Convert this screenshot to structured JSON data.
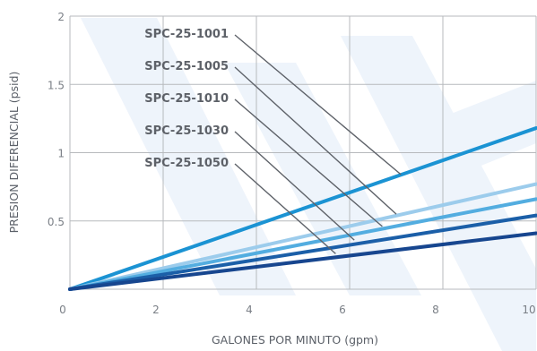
{
  "chart_data": {
    "type": "line",
    "xlabel": "GALONES POR MINUTO (gpm)",
    "ylabel": "PRESION DIFERENCIAL (psid)",
    "xlim": [
      0,
      10
    ],
    "ylim": [
      0,
      2
    ],
    "x_ticks": [
      "0",
      "2",
      "4",
      "6",
      "8",
      "10"
    ],
    "y_ticks": [
      "0.5",
      "1",
      "1.5",
      "2"
    ],
    "grid": true,
    "series": [
      {
        "name": "SPC-25-1001",
        "x": [
          0,
          10
        ],
        "y": [
          0,
          1.18
        ],
        "color": "#1b93d3"
      },
      {
        "name": "SPC-25-1005",
        "x": [
          0,
          10
        ],
        "y": [
          0,
          0.77
        ],
        "color": "#9cccec"
      },
      {
        "name": "SPC-25-1010",
        "x": [
          0,
          10
        ],
        "y": [
          0,
          0.66
        ],
        "color": "#53ade0"
      },
      {
        "name": "SPC-25-1030",
        "x": [
          0,
          10
        ],
        "y": [
          0,
          0.54
        ],
        "color": "#1b5fa8"
      },
      {
        "name": "SPC-25-1050",
        "x": [
          0,
          10
        ],
        "y": [
          0,
          0.41
        ],
        "color": "#17468f"
      }
    ],
    "label_leader_targets": [
      {
        "x": 7.1,
        "y": 0.84
      },
      {
        "x": 7.0,
        "y": 0.55
      },
      {
        "x": 6.7,
        "y": 0.46
      },
      {
        "x": 6.1,
        "y": 0.36
      },
      {
        "x": 5.7,
        "y": 0.26
      }
    ]
  }
}
